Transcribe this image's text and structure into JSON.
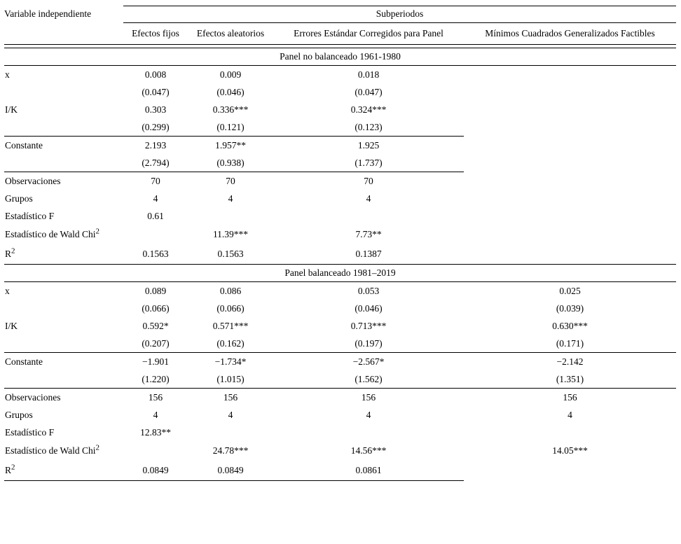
{
  "table": {
    "header": {
      "col1": "Variable independiente",
      "group": "Subperiodos",
      "columns": [
        "Efectos fijos",
        "Efectos aleatorios",
        "Errores Estándar Corregidos para Panel",
        "Mínimos Cuadrados Generalizados Factibles"
      ]
    },
    "sections": [
      {
        "title": "Panel no balanceado 1961-1980",
        "rows": [
          {
            "label": "x",
            "cells": [
              "0.008",
              "0.009",
              "0.018",
              ""
            ]
          },
          {
            "label": "",
            "cells": [
              "(0.047)",
              "(0.046)",
              "(0.047)",
              ""
            ]
          },
          {
            "label": "I/K",
            "cells": [
              "0.303",
              "0.336***",
              "0.324***",
              ""
            ]
          },
          {
            "label": "",
            "cells": [
              "(0.299)",
              "(0.121)",
              "(0.123)",
              ""
            ]
          },
          {
            "label": "Constante",
            "cells": [
              "2.193",
              "1.957**",
              "1.925",
              ""
            ]
          },
          {
            "label": "",
            "cells": [
              "(2.794)",
              "(0.938)",
              "(1.737)",
              ""
            ]
          },
          {
            "label": "Observaciones",
            "cells": [
              "70",
              "70",
              "70",
              ""
            ]
          },
          {
            "label": "Grupos",
            "cells": [
              "4",
              "4",
              "4",
              ""
            ]
          },
          {
            "label": "Estadístico F",
            "cells": [
              "0.61",
              "",
              "",
              ""
            ]
          },
          {
            "label": "Estadístico de Wald Chi",
            "sup": "2",
            "cells": [
              "",
              "11.39***",
              "7.73**",
              ""
            ]
          },
          {
            "label": "R",
            "sup": "2",
            "cells": [
              "0.1563",
              "0.1563",
              "0.1387",
              ""
            ]
          }
        ]
      },
      {
        "title": "Panel balanceado 1981–2019",
        "rows": [
          {
            "label": "x",
            "cells": [
              "0.089",
              "0.086",
              "0.053",
              "0.025"
            ]
          },
          {
            "label": "",
            "cells": [
              "(0.066)",
              "(0.066)",
              "(0.046)",
              "(0.039)"
            ]
          },
          {
            "label": "I/K",
            "cells": [
              "0.592*",
              "0.571***",
              "0.713***",
              "0.630***"
            ]
          },
          {
            "label": "",
            "cells": [
              "(0.207)",
              "(0.162)",
              "(0.197)",
              "(0.171)"
            ]
          },
          {
            "label": "Constante",
            "cells": [
              "−1.901",
              "−1.734*",
              "−2.567*",
              "−2.142"
            ]
          },
          {
            "label": "",
            "cells": [
              "(1.220)",
              "(1.015)",
              "(1.562)",
              "(1.351)"
            ]
          },
          {
            "label": "Observaciones",
            "cells": [
              "156",
              "156",
              "156",
              "156"
            ]
          },
          {
            "label": "Grupos",
            "cells": [
              "4",
              "4",
              "4",
              "4"
            ]
          },
          {
            "label": "Estadístico F",
            "cells": [
              "12.83**",
              "",
              "",
              ""
            ]
          },
          {
            "label": "Estadístico de Wald Chi",
            "sup": "2",
            "cells": [
              "",
              "24.78***",
              "14.56***",
              "14.05***"
            ]
          },
          {
            "label": "R",
            "sup": "2",
            "cells": [
              "0.0849",
              "0.0849",
              "0.0861",
              ""
            ]
          }
        ]
      }
    ]
  }
}
